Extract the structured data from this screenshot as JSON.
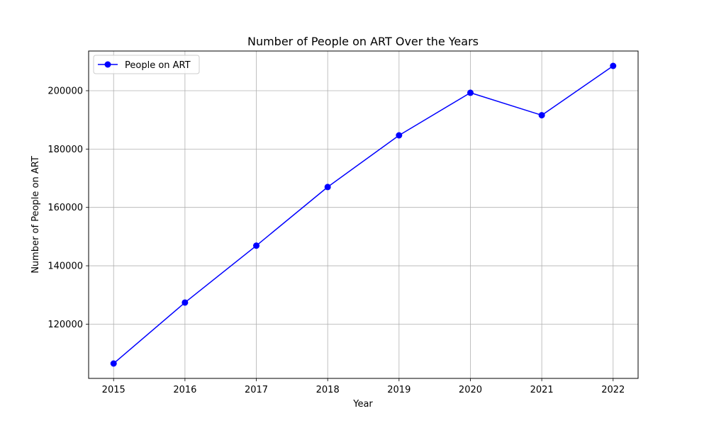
{
  "chart_data": {
    "type": "line",
    "title": "Number of People on ART Over the Years",
    "xlabel": "Year",
    "ylabel": "Number of People on ART",
    "x": [
      2015,
      2016,
      2017,
      2018,
      2019,
      2020,
      2021,
      2022
    ],
    "series": [
      {
        "name": "People on ART",
        "values": [
          106500,
          127400,
          146900,
          167000,
          184700,
          199300,
          191600,
          208500
        ],
        "color": "#0000ff",
        "marker": "circle"
      }
    ],
    "xlim": [
      2014.65,
      2022.35
    ],
    "ylim": [
      101400,
      213600
    ],
    "yticks": [
      120000,
      140000,
      160000,
      180000,
      200000
    ],
    "grid": true,
    "legend_position": "upper-left"
  }
}
